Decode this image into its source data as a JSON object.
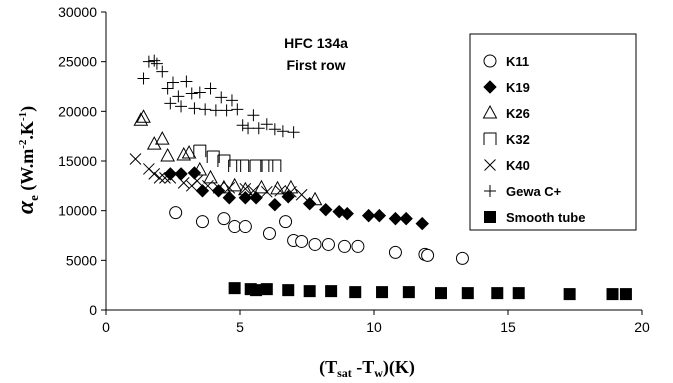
{
  "chart_data": {
    "type": "scatter",
    "title": "HFC 134a",
    "subtitle": "First row",
    "xlabel": {
      "open": "(T",
      "sub1": "sat",
      "mid": " -T",
      "sub2": "w",
      "close": ")(K)"
    },
    "ylabel": {
      "symbol": "α",
      "symbol_sub": "e",
      "units_a": " (W.m",
      "sup1": "-2",
      "units_b": ".K",
      "sup2": "-1",
      "units_c": ")"
    },
    "xlim": [
      0,
      20
    ],
    "ylim": [
      0,
      30000
    ],
    "x_ticks": [
      "0",
      "5",
      "10",
      "15",
      "20"
    ],
    "y_ticks": [
      "0",
      "5000",
      "10000",
      "15000",
      "20000",
      "25000",
      "30000"
    ],
    "grid": false,
    "legend_position": "top-right",
    "series": [
      {
        "name": "K11",
        "marker": "circle-open",
        "points": [
          [
            2.6,
            9800
          ],
          [
            3.6,
            8900
          ],
          [
            4.4,
            9200
          ],
          [
            4.8,
            8400
          ],
          [
            5.2,
            8400
          ],
          [
            6.1,
            7700
          ],
          [
            6.7,
            8900
          ],
          [
            7.0,
            7000
          ],
          [
            7.3,
            6900
          ],
          [
            7.8,
            6600
          ],
          [
            8.3,
            6600
          ],
          [
            8.9,
            6400
          ],
          [
            9.4,
            6400
          ],
          [
            10.8,
            5800
          ],
          [
            11.9,
            5600
          ],
          [
            12.0,
            5500
          ],
          [
            13.3,
            5200
          ]
        ]
      },
      {
        "name": "K19",
        "marker": "diamond-filled",
        "points": [
          [
            2.4,
            13700
          ],
          [
            2.8,
            13700
          ],
          [
            3.3,
            13800
          ],
          [
            3.6,
            12000
          ],
          [
            4.2,
            12000
          ],
          [
            4.6,
            11300
          ],
          [
            5.2,
            11300
          ],
          [
            5.6,
            11300
          ],
          [
            6.3,
            10600
          ],
          [
            6.8,
            11400
          ],
          [
            7.6,
            10700
          ],
          [
            8.2,
            10100
          ],
          [
            8.7,
            9900
          ],
          [
            9.0,
            9700
          ],
          [
            9.8,
            9500
          ],
          [
            10.2,
            9500
          ],
          [
            10.8,
            9200
          ],
          [
            11.2,
            9200
          ],
          [
            11.8,
            8700
          ]
        ]
      },
      {
        "name": "K26",
        "marker": "triangle-open",
        "points": [
          [
            1.3,
            19100
          ],
          [
            1.4,
            19400
          ],
          [
            1.8,
            16700
          ],
          [
            2.1,
            17200
          ],
          [
            2.3,
            15500
          ],
          [
            2.9,
            15600
          ],
          [
            3.1,
            15800
          ],
          [
            3.5,
            14100
          ],
          [
            3.9,
            13300
          ],
          [
            4.4,
            12300
          ],
          [
            4.8,
            12500
          ],
          [
            5.2,
            12100
          ],
          [
            5.8,
            12300
          ],
          [
            6.4,
            12200
          ],
          [
            6.9,
            12300
          ],
          [
            7.8,
            11100
          ]
        ]
      },
      {
        "name": "K32",
        "marker": "square-open",
        "points": [
          [
            3.5,
            16000
          ],
          [
            4.0,
            15400
          ],
          [
            4.4,
            15000
          ],
          [
            4.8,
            14500
          ],
          [
            5.1,
            14500
          ],
          [
            5.6,
            14500
          ],
          [
            6.0,
            14500
          ],
          [
            6.3,
            14500
          ]
        ]
      },
      {
        "name": "K40",
        "marker": "cross",
        "points": [
          [
            1.1,
            15200
          ],
          [
            1.6,
            14200
          ],
          [
            1.8,
            13700
          ],
          [
            2.0,
            13300
          ],
          [
            2.2,
            13300
          ],
          [
            2.4,
            13300
          ],
          [
            2.9,
            12800
          ],
          [
            3.2,
            12500
          ],
          [
            3.4,
            13000
          ],
          [
            3.8,
            12500
          ],
          [
            4.2,
            12300
          ],
          [
            4.6,
            12300
          ],
          [
            5.2,
            12200
          ],
          [
            5.5,
            12000
          ],
          [
            6.0,
            11900
          ],
          [
            6.5,
            12000
          ],
          [
            6.9,
            11900
          ],
          [
            7.3,
            11600
          ]
        ]
      },
      {
        "name": "Gewa C+",
        "marker": "plus",
        "points": [
          [
            1.4,
            23300
          ],
          [
            1.6,
            25000
          ],
          [
            1.8,
            25100
          ],
          [
            1.9,
            24800
          ],
          [
            2.1,
            24000
          ],
          [
            2.3,
            22300
          ],
          [
            2.4,
            20800
          ],
          [
            2.5,
            22900
          ],
          [
            2.7,
            21500
          ],
          [
            2.8,
            20500
          ],
          [
            3.0,
            23000
          ],
          [
            3.2,
            21800
          ],
          [
            3.3,
            20300
          ],
          [
            3.5,
            21900
          ],
          [
            3.7,
            20200
          ],
          [
            3.9,
            22300
          ],
          [
            4.1,
            20100
          ],
          [
            4.3,
            21400
          ],
          [
            4.5,
            20100
          ],
          [
            4.7,
            21100
          ],
          [
            4.9,
            20200
          ],
          [
            5.1,
            18600
          ],
          [
            5.3,
            18300
          ],
          [
            5.5,
            19600
          ],
          [
            5.7,
            18300
          ],
          [
            6.0,
            18700
          ],
          [
            6.3,
            18200
          ],
          [
            6.6,
            18000
          ],
          [
            7.0,
            17900
          ]
        ]
      },
      {
        "name": "Smooth tube",
        "marker": "square-filled",
        "points": [
          [
            4.8,
            2200
          ],
          [
            5.4,
            2100
          ],
          [
            5.6,
            2000
          ],
          [
            6.0,
            2100
          ],
          [
            6.8,
            2000
          ],
          [
            7.6,
            1900
          ],
          [
            8.4,
            1900
          ],
          [
            9.3,
            1800
          ],
          [
            10.3,
            1800
          ],
          [
            11.3,
            1800
          ],
          [
            12.5,
            1700
          ],
          [
            13.5,
            1700
          ],
          [
            14.6,
            1700
          ],
          [
            15.4,
            1700
          ],
          [
            17.3,
            1600
          ],
          [
            18.9,
            1600
          ],
          [
            19.4,
            1600
          ]
        ]
      }
    ]
  }
}
